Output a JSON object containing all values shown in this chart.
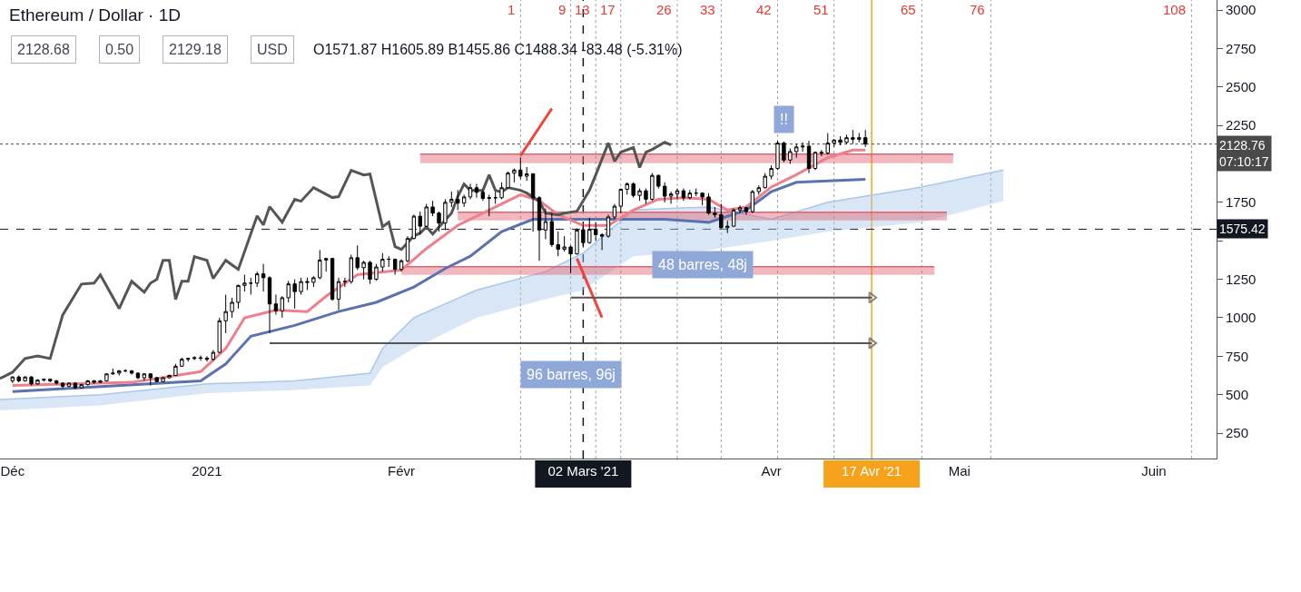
{
  "chart_data": {
    "type": "candlestick",
    "title": "Ethereum / Dollar · 1D",
    "subtitle": "O1571.87 H1605.89 B1455.86 C1488.34 -83.48 (-5.31%)",
    "annotations": [
      "2128.68",
      "0.50",
      "2129.18",
      "USD",
      {
        "text": "48 barres, 48j",
        "x": "2021-03-21",
        "y": 1343
      },
      {
        "text": "96 barres, 96j",
        "x": "2021-02-28",
        "y": 628
      },
      {
        "text": "!!",
        "x": "2021-04-03",
        "y": 2290
      }
    ],
    "x": [
      "2020-12-01",
      "2020-12-02",
      "2020-12-03",
      "2020-12-04",
      "2020-12-05",
      "2020-12-06",
      "2020-12-07",
      "2020-12-08",
      "2020-12-09",
      "2020-12-10",
      "2020-12-11",
      "2020-12-12",
      "2020-12-13",
      "2020-12-14",
      "2020-12-15",
      "2020-12-16",
      "2020-12-17",
      "2020-12-18",
      "2020-12-19",
      "2020-12-20",
      "2020-12-21",
      "2020-12-22",
      "2020-12-23",
      "2020-12-24",
      "2020-12-25",
      "2020-12-26",
      "2020-12-27",
      "2020-12-28",
      "2020-12-29",
      "2020-12-30",
      "2020-12-31",
      "2021-01-01",
      "2021-01-02",
      "2021-01-03",
      "2021-01-04",
      "2021-01-05",
      "2021-01-06",
      "2021-01-07",
      "2021-01-08",
      "2021-01-09",
      "2021-01-10",
      "2021-01-11",
      "2021-01-12",
      "2021-01-13",
      "2021-01-14",
      "2021-01-15",
      "2021-01-16",
      "2021-01-17",
      "2021-01-18",
      "2021-01-19",
      "2021-01-20",
      "2021-01-21",
      "2021-01-22",
      "2021-01-23",
      "2021-01-24",
      "2021-01-25",
      "2021-01-26",
      "2021-01-27",
      "2021-01-28",
      "2021-01-29",
      "2021-01-30",
      "2021-01-31",
      "2021-02-01",
      "2021-02-02",
      "2021-02-03",
      "2021-02-04",
      "2021-02-05",
      "2021-02-06",
      "2021-02-07",
      "2021-02-08",
      "2021-02-09",
      "2021-02-10",
      "2021-02-11",
      "2021-02-12",
      "2021-02-13",
      "2021-02-14",
      "2021-02-15",
      "2021-02-16",
      "2021-02-17",
      "2021-02-18",
      "2021-02-19",
      "2021-02-20",
      "2021-02-21",
      "2021-02-22",
      "2021-02-23",
      "2021-02-24",
      "2021-02-25",
      "2021-02-26",
      "2021-02-27",
      "2021-02-28",
      "2021-03-01",
      "2021-03-02",
      "2021-03-03",
      "2021-03-04",
      "2021-03-05",
      "2021-03-06",
      "2021-03-07",
      "2021-03-08",
      "2021-03-09",
      "2021-03-10",
      "2021-03-11",
      "2021-03-12",
      "2021-03-13",
      "2021-03-14",
      "2021-03-15",
      "2021-03-16",
      "2021-03-17",
      "2021-03-18",
      "2021-03-19",
      "2021-03-20",
      "2021-03-21",
      "2021-03-22",
      "2021-03-23",
      "2021-03-24",
      "2021-03-25",
      "2021-03-26",
      "2021-03-27",
      "2021-03-28",
      "2021-03-29",
      "2021-03-30",
      "2021-03-31",
      "2021-04-01",
      "2021-04-02",
      "2021-04-03",
      "2021-04-04",
      "2021-04-05",
      "2021-04-06",
      "2021-04-07",
      "2021-04-08",
      "2021-04-09",
      "2021-04-10",
      "2021-04-11",
      "2021-04-12",
      "2021-04-13",
      "2021-04-14",
      "2021-04-15",
      "2021-04-16"
    ],
    "ohlc": [
      [
        590,
        620,
        575,
        615
      ],
      [
        615,
        625,
        580,
        590
      ],
      [
        590,
        620,
        585,
        615
      ],
      [
        615,
        620,
        560,
        570
      ],
      [
        570,
        600,
        565,
        595
      ],
      [
        595,
        605,
        585,
        600
      ],
      [
        600,
        605,
        580,
        590
      ],
      [
        590,
        595,
        565,
        575
      ],
      [
        575,
        580,
        540,
        555
      ],
      [
        555,
        580,
        550,
        575
      ],
      [
        575,
        580,
        535,
        545
      ],
      [
        545,
        570,
        540,
        565
      ],
      [
        565,
        595,
        560,
        590
      ],
      [
        590,
        595,
        570,
        580
      ],
      [
        580,
        595,
        575,
        590
      ],
      [
        590,
        640,
        585,
        635
      ],
      [
        635,
        670,
        630,
        640
      ],
      [
        640,
        660,
        625,
        655
      ],
      [
        655,
        665,
        645,
        655
      ],
      [
        655,
        660,
        630,
        640
      ],
      [
        640,
        645,
        600,
        610
      ],
      [
        610,
        640,
        590,
        635
      ],
      [
        635,
        640,
        560,
        610
      ],
      [
        610,
        615,
        580,
        585
      ],
      [
        585,
        615,
        580,
        610
      ],
      [
        610,
        630,
        605,
        625
      ],
      [
        625,
        700,
        620,
        685
      ],
      [
        685,
        740,
        680,
        730
      ],
      [
        730,
        740,
        715,
        735
      ],
      [
        735,
        750,
        725,
        740
      ],
      [
        740,
        755,
        720,
        737
      ],
      [
        737,
        750,
        715,
        730
      ],
      [
        730,
        790,
        720,
        775
      ],
      [
        775,
        1000,
        770,
        980
      ],
      [
        980,
        1150,
        900,
        1040
      ],
      [
        1040,
        1130,
        1000,
        1100
      ],
      [
        1100,
        1215,
        1060,
        1210
      ],
      [
        1210,
        1280,
        1170,
        1225
      ],
      [
        1225,
        1260,
        1150,
        1225
      ],
      [
        1225,
        1300,
        1200,
        1285
      ],
      [
        1285,
        1350,
        1170,
        1260
      ],
      [
        1260,
        1270,
        900,
        1090
      ],
      [
        1090,
        1150,
        1020,
        1045
      ],
      [
        1045,
        1140,
        1000,
        1130
      ],
      [
        1130,
        1240,
        1100,
        1220
      ],
      [
        1220,
        1250,
        1060,
        1170
      ],
      [
        1170,
        1260,
        1150,
        1235
      ],
      [
        1235,
        1260,
        1180,
        1230
      ],
      [
        1230,
        1270,
        1200,
        1260
      ],
      [
        1260,
        1440,
        1250,
        1375
      ],
      [
        1375,
        1390,
        1300,
        1385
      ],
      [
        1385,
        1390,
        1110,
        1120
      ],
      [
        1120,
        1260,
        1050,
        1235
      ],
      [
        1235,
        1260,
        1200,
        1235
      ],
      [
        1235,
        1410,
        1220,
        1390
      ],
      [
        1390,
        1470,
        1310,
        1325
      ],
      [
        1325,
        1370,
        1250,
        1360
      ],
      [
        1360,
        1370,
        1220,
        1250
      ],
      [
        1250,
        1350,
        1240,
        1330
      ],
      [
        1330,
        1420,
        1300,
        1380
      ],
      [
        1380,
        1400,
        1330,
        1380
      ],
      [
        1380,
        1385,
        1280,
        1315
      ],
      [
        1315,
        1380,
        1300,
        1370
      ],
      [
        1370,
        1530,
        1360,
        1515
      ],
      [
        1515,
        1670,
        1510,
        1660
      ],
      [
        1660,
        1690,
        1540,
        1595
      ],
      [
        1595,
        1740,
        1590,
        1720
      ],
      [
        1720,
        1760,
        1660,
        1680
      ],
      [
        1680,
        1690,
        1560,
        1615
      ],
      [
        1615,
        1770,
        1570,
        1750
      ],
      [
        1750,
        1820,
        1720,
        1770
      ],
      [
        1770,
        1830,
        1700,
        1745
      ],
      [
        1745,
        1800,
        1720,
        1785
      ],
      [
        1785,
        1870,
        1770,
        1845
      ],
      [
        1845,
        1870,
        1780,
        1815
      ],
      [
        1815,
        1830,
        1760,
        1775
      ],
      [
        1775,
        1800,
        1660,
        1780
      ],
      [
        1780,
        1820,
        1740,
        1780
      ],
      [
        1780,
        1880,
        1770,
        1845
      ],
      [
        1845,
        1950,
        1840,
        1940
      ],
      [
        1940,
        1970,
        1880,
        1960
      ],
      [
        1960,
        2040,
        1900,
        1920
      ],
      [
        1920,
        1980,
        1890,
        1935
      ],
      [
        1935,
        1940,
        1560,
        1780
      ],
      [
        1780,
        1790,
        1370,
        1570
      ],
      [
        1570,
        1710,
        1510,
        1625
      ],
      [
        1625,
        1680,
        1460,
        1475
      ],
      [
        1475,
        1560,
        1400,
        1445
      ],
      [
        1445,
        1530,
        1430,
        1460
      ],
      [
        1460,
        1470,
        1290,
        1415
      ],
      [
        1415,
        1580,
        1410,
        1570
      ],
      [
        1571.87,
        1605.89,
        1455.86,
        1488.34
      ],
      [
        1488.34,
        1650,
        1480,
        1575
      ],
      [
        1575,
        1620,
        1500,
        1540
      ],
      [
        1540,
        1550,
        1440,
        1530
      ],
      [
        1530,
        1670,
        1520,
        1655
      ],
      [
        1655,
        1740,
        1640,
        1725
      ],
      [
        1725,
        1840,
        1680,
        1835
      ],
      [
        1835,
        1880,
        1800,
        1870
      ],
      [
        1870,
        1880,
        1780,
        1795
      ],
      [
        1795,
        1840,
        1760,
        1825
      ],
      [
        1825,
        1840,
        1740,
        1770
      ],
      [
        1770,
        1940,
        1760,
        1925
      ],
      [
        1925,
        1930,
        1840,
        1855
      ],
      [
        1855,
        1880,
        1750,
        1790
      ],
      [
        1790,
        1820,
        1740,
        1805
      ],
      [
        1805,
        1840,
        1770,
        1825
      ],
      [
        1825,
        1840,
        1760,
        1780
      ],
      [
        1780,
        1830,
        1770,
        1810
      ],
      [
        1810,
        1840,
        1790,
        1810
      ],
      [
        1810,
        1815,
        1730,
        1785
      ],
      [
        1785,
        1810,
        1670,
        1680
      ],
      [
        1680,
        1720,
        1650,
        1670
      ],
      [
        1670,
        1740,
        1580,
        1585
      ],
      [
        1585,
        1630,
        1550,
        1595
      ],
      [
        1595,
        1710,
        1590,
        1700
      ],
      [
        1700,
        1730,
        1680,
        1715
      ],
      [
        1715,
        1720,
        1670,
        1690
      ],
      [
        1690,
        1830,
        1680,
        1820
      ],
      [
        1820,
        1860,
        1800,
        1845
      ],
      [
        1845,
        1940,
        1840,
        1920
      ],
      [
        1920,
        1990,
        1900,
        1970
      ],
      [
        1970,
        2150,
        1960,
        2135
      ],
      [
        2135,
        2145,
        2010,
        2025
      ],
      [
        2025,
        2100,
        2000,
        2080
      ],
      [
        2080,
        2130,
        2040,
        2110
      ],
      [
        2110,
        2140,
        2080,
        2115
      ],
      [
        2115,
        2150,
        1940,
        1970
      ],
      [
        1970,
        2080,
        1960,
        2075
      ],
      [
        2075,
        2090,
        2050,
        2070
      ],
      [
        2070,
        2200,
        2060,
        2135
      ],
      [
        2135,
        2160,
        2110,
        2155
      ],
      [
        2155,
        2180,
        2120,
        2140
      ],
      [
        2140,
        2190,
        2130,
        2170
      ],
      [
        2170,
        2220,
        2130,
        2160
      ],
      [
        2160,
        2200,
        2140,
        2170
      ],
      [
        2170,
        2220,
        2110,
        2128.76
      ]
    ],
    "series": [
      {
        "type": "line",
        "color": "#a9c8ec",
        "x": [
          "2020-11-29",
          "2020-12-15",
          "2021-01-01",
          "2021-01-15",
          "2021-01-27",
          "2021-01-29",
          "2021-02-03",
          "2021-02-13",
          "2021-02-24",
          "2021-03-02",
          "2021-03-10",
          "2021-03-22",
          "2021-04-01",
          "2021-04-10",
          "2021-04-25",
          "2021-05-08"
        ],
        "lower": [
          398,
          430,
          510,
          530,
          560,
          680,
          800,
          1000,
          1120,
          1180,
          1400,
          1440,
          1500,
          1560,
          1620,
          1760
        ],
        "upper": [
          469,
          500,
          570,
          590,
          640,
          800,
          1000,
          1180,
          1300,
          1420,
          1700,
          1720,
          1640,
          1750,
          1850,
          1960
        ],
        "values": [
          469,
          500,
          570,
          590,
          640,
          800,
          1000,
          1180,
          1300,
          1420,
          1700,
          1720,
          1640,
          1750,
          1850,
          1960
        ]
      },
      {
        "type": "line",
        "color": "#e06470",
        "x": [
          "2021-02-04",
          "2021-04-30"
        ],
        "lower": [
          2005,
          2005
        ],
        "upper": [
          2064,
          2064
        ],
        "values": [
          2064,
          2064
        ]
      },
      {
        "type": "line",
        "color": "#e06470",
        "x": [
          "2021-02-10",
          "2021-04-29"
        ],
        "lower": [
          1633,
          1633
        ],
        "upper": [
          1686,
          1686
        ],
        "values": [
          1686,
          1686
        ]
      },
      {
        "type": "line",
        "color": "#e06470",
        "x": [
          "2021-02-01",
          "2021-04-27"
        ],
        "lower": [
          1278,
          1278
        ],
        "upper": [
          1331,
          1331
        ],
        "values": [
          1331,
          1331
        ]
      },
      {
        "type": "line",
        "color": "#5b72b0",
        "x": [
          "2020-12-01",
          "2020-12-31",
          "2021-01-04",
          "2021-01-08",
          "2021-01-15",
          "2021-01-22",
          "2021-01-28",
          "2021-02-03",
          "2021-02-08",
          "2021-02-12",
          "2021-02-17",
          "2021-02-22",
          "2021-02-28",
          "2021-03-05",
          "2021-03-15",
          "2021-03-22",
          "2021-03-28",
          "2021-04-01",
          "2021-04-05",
          "2021-04-16"
        ],
        "values": [
          520,
          590,
          700,
          880,
          950,
          1040,
          1100,
          1200,
          1320,
          1400,
          1560,
          1640,
          1640,
          1640,
          1640,
          1620,
          1700,
          1820,
          1880,
          1900
        ]
      },
      {
        "type": "line",
        "color": "#ef7f8c",
        "x": [
          "2020-12-01",
          "2020-12-20",
          "2020-12-31",
          "2021-01-04",
          "2021-01-07",
          "2021-01-12",
          "2021-01-17",
          "2021-01-20",
          "2021-01-25",
          "2021-02-01",
          "2021-02-05",
          "2021-02-10",
          "2021-02-15",
          "2021-02-20",
          "2021-02-23",
          "2021-02-26",
          "2021-03-02",
          "2021-03-06",
          "2021-03-10",
          "2021-03-14",
          "2021-03-18",
          "2021-03-22",
          "2021-03-25",
          "2021-03-28",
          "2021-04-01",
          "2021-04-05",
          "2021-04-10",
          "2021-04-14",
          "2021-04-16"
        ],
        "values": [
          560,
          580,
          650,
          800,
          1000,
          1050,
          1040,
          1140,
          1280,
          1310,
          1450,
          1600,
          1700,
          1800,
          1760,
          1670,
          1600,
          1600,
          1700,
          1770,
          1780,
          1770,
          1700,
          1720,
          1850,
          1930,
          2040,
          2090,
          2090
        ]
      },
      {
        "type": "line",
        "color": "#555555",
        "x": [
          "2020-11-29",
          "2020-12-01",
          "2020-12-03",
          "2020-12-05",
          "2020-12-07",
          "2020-12-09",
          "2020-12-12",
          "2020-12-14",
          "2020-12-15",
          "2020-12-18",
          "2020-12-20",
          "2020-12-22",
          "2020-12-23",
          "2020-12-24",
          "2020-12-25",
          "2020-12-26",
          "2020-12-27",
          "2020-12-28",
          "2020-12-29",
          "2020-12-30",
          "2021-01-01",
          "2021-01-02",
          "2021-01-04",
          "2021-01-06",
          "2021-01-09",
          "2021-01-10",
          "2021-01-11",
          "2021-01-13",
          "2021-01-15",
          "2021-01-16",
          "2021-01-18",
          "2021-01-21",
          "2021-01-22",
          "2021-01-24",
          "2021-01-26",
          "2021-01-27",
          "2021-01-29",
          "2021-01-30",
          "2021-01-31",
          "2021-02-01",
          "2021-02-03",
          "2021-02-04",
          "2021-02-05",
          "2021-02-06",
          "2021-02-09",
          "2021-02-10",
          "2021-02-11",
          "2021-02-12",
          "2021-02-14",
          "2021-02-15",
          "2021-02-16",
          "2021-02-17",
          "2021-02-18",
          "2021-02-20",
          "2021-02-21",
          "2021-02-23",
          "2021-02-24",
          "2021-02-26",
          "2021-02-27",
          "2021-03-01",
          "2021-03-03",
          "2021-03-04",
          "2021-03-06",
          "2021-03-07",
          "2021-03-08",
          "2021-03-10",
          "2021-03-11",
          "2021-03-12",
          "2021-03-13",
          "2021-03-15",
          "2021-03-16"
        ],
        "values": [
          605,
          646,
          735,
          752,
          735,
          1018,
          1219,
          1225,
          1278,
          1060,
          1237,
          1166,
          1225,
          1249,
          1373,
          1373,
          1119,
          1237,
          1237,
          1397,
          1373,
          1255,
          1373,
          1314,
          1662,
          1603,
          1722,
          1621,
          1769,
          1757,
          1846,
          1781,
          1787,
          1958,
          1928,
          1934,
          1591,
          1621,
          1462,
          1444,
          1532,
          1550,
          1591,
          1544,
          1680,
          1787,
          1869,
          1828,
          1828,
          1928,
          1828,
          1816,
          1846,
          1828,
          1810,
          1757,
          1680,
          1668,
          1680,
          1692,
          1828,
          1928,
          2135,
          2017,
          2076,
          2106,
          1976,
          2076,
          2094,
          2141,
          2123
        ]
      },
      {
        "type": "line",
        "color": "#f44336",
        "x": [
          "2021-02-20",
          "2021-02-25"
        ],
        "values": [
          2053,
          2360
        ]
      },
      {
        "type": "line",
        "color": "#f44336",
        "x": [
          "2021-03-01",
          "2021-03-05"
        ],
        "values": [
          1385,
          1001
        ]
      },
      {
        "type": "line",
        "color": "#555555",
        "marker": "triangle",
        "x": [
          "2021-02-28",
          "2021-04-17"
        ],
        "values": [
          1131,
          1131
        ]
      },
      {
        "type": "line",
        "color": "#555555",
        "marker": "triangle",
        "x": [
          "2021-01-11",
          "2021-04-17"
        ],
        "values": [
          835,
          835
        ]
      }
    ],
    "ref_lines": [
      {
        "axis": "x",
        "value": "2021-02-20",
        "label": "1",
        "line_style": "dotted"
      },
      {
        "axis": "x",
        "value": "2021-02-28",
        "label": "9",
        "line_style": "dotted"
      },
      {
        "axis": "x",
        "value": "2021-03-04",
        "label": "13",
        "line_style": "dotted"
      },
      {
        "axis": "x",
        "value": "2021-03-08",
        "label": "17",
        "line_style": "dotted"
      },
      {
        "axis": "x",
        "value": "2021-03-17",
        "label": "26",
        "line_style": "dotted"
      },
      {
        "axis": "x",
        "value": "2021-03-24",
        "label": "33",
        "line_style": "dotted"
      },
      {
        "axis": "x",
        "value": "2021-04-02",
        "label": "42",
        "line_style": "dotted"
      },
      {
        "axis": "x",
        "value": "2021-04-11",
        "label": "51",
        "line_style": "dotted"
      },
      {
        "axis": "x",
        "value": "2021-04-25",
        "label": "65",
        "line_style": "dotted"
      },
      {
        "axis": "x",
        "value": "2021-05-06",
        "label": "76",
        "line_style": "dotted"
      },
      {
        "axis": "x",
        "value": "2021-06-07",
        "label": "108",
        "line_style": "dotted"
      },
      {
        "axis": "x",
        "value": "2021-03-02",
        "color": "#131722",
        "line_style": "dashed"
      },
      {
        "axis": "x",
        "value": "2021-04-17",
        "color": "#f7a21b",
        "line_style": "solid"
      },
      {
        "axis": "y",
        "value": 2128.76,
        "label": "2128.76\n07:10:17",
        "color": "#4a4a4a",
        "line_style": "dotted"
      },
      {
        "axis": "y",
        "value": 1575.42,
        "label": "1575.42",
        "color": "#131722",
        "line_style": "dashed"
      }
    ],
    "xlim": [
      "2020-11-29",
      "2021-06-11"
    ],
    "xticks": [
      {
        "value": "2020-12-01",
        "label": "Déc"
      },
      {
        "value": "2021-01-01",
        "label": "2021"
      },
      {
        "value": "2021-02-01",
        "label": "Févr"
      },
      {
        "value": "2021-03-02",
        "label": "02 Mars '21"
      },
      {
        "value": "2021-04-01",
        "label": "Avr"
      },
      {
        "value": "2021-04-17",
        "label": "17 Avr '21"
      },
      {
        "value": "2021-05-01",
        "label": "Mai"
      },
      {
        "value": "2021-06-01",
        "label": "Juin"
      }
    ],
    "ylim": [
      85,
      3065
    ],
    "yticks": [
      250,
      500,
      750,
      1000,
      1250,
      {
        "value": 1500,
        "label": null
      },
      1750,
      {
        "value": 2000,
        "label": null
      },
      2250,
      2500,
      2750,
      3000
    ],
    "tick_labels": "xy"
  }
}
